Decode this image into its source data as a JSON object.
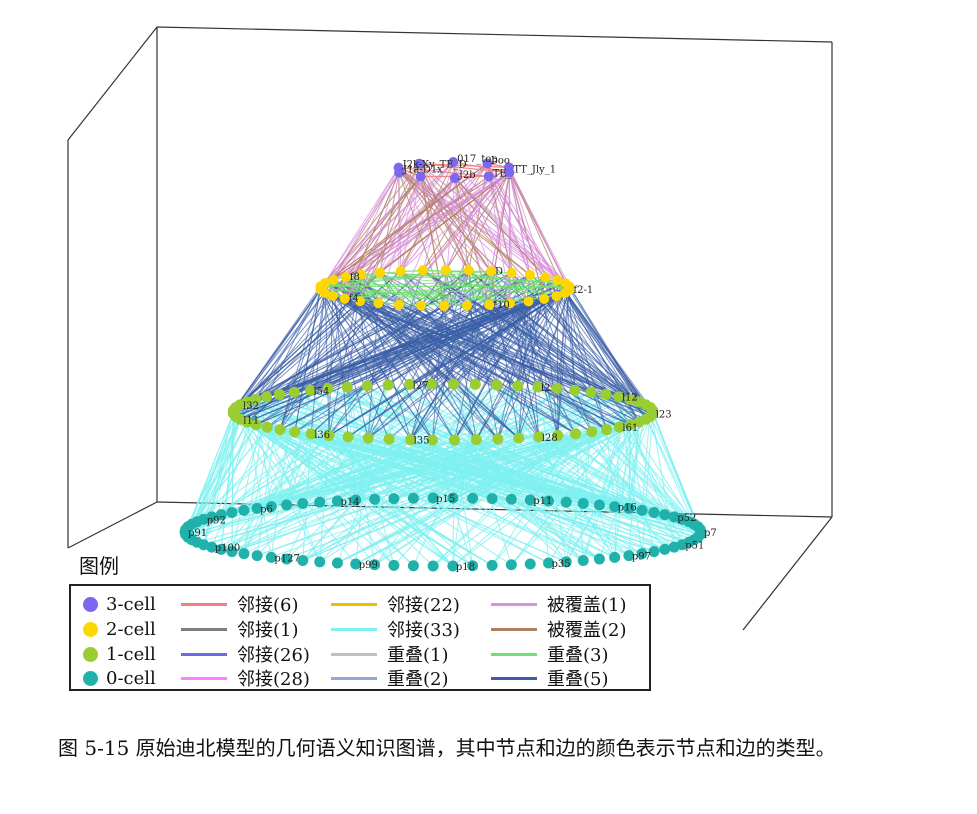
{
  "legend": {
    "title": "图例",
    "node_types": [
      {
        "label": "3-cell",
        "color": "#7b68ee"
      },
      {
        "label": "2-cell",
        "color": "#ffd700"
      },
      {
        "label": "1-cell",
        "color": "#9acd32"
      },
      {
        "label": "0-cell",
        "color": "#20b2aa"
      }
    ],
    "edge_types": [
      {
        "label": "邻接(6)",
        "color": "#f08080"
      },
      {
        "label": "邻接(1)",
        "color": "#808080"
      },
      {
        "label": "邻接(26)",
        "color": "#6a6ae8"
      },
      {
        "label": "邻接(28)",
        "color": "#ff80ff"
      },
      {
        "label": "邻接(22)",
        "color": "#f0c000"
      },
      {
        "label": "邻接(33)",
        "color": "#7ff0f0"
      },
      {
        "label": "重叠(1)",
        "color": "#c0c0c0"
      },
      {
        "label": "重叠(2)",
        "color": "#90a8d8"
      },
      {
        "label": "被覆盖(1)",
        "color": "#da90e0"
      },
      {
        "label": "被覆盖(2)",
        "color": "#b08060"
      },
      {
        "label": "重叠(3)",
        "color": "#70e070"
      },
      {
        "label": "重叠(5)",
        "color": "#3a5fa8"
      }
    ]
  },
  "caption": "图 5-15 原始迪北模型的几何语义知识图谱，其中节点和边的颜色表示节点和边的类型。",
  "graph_node_labels": {
    "cell3": [
      "TT_Jly_1",
      "TE_",
      "J2b",
      "J1a-D1x",
      "J2k-Xy_TE_D",
      "017_top",
      "boo"
    ],
    "cell2": [
      "f2-1",
      "f10",
      "f4",
      "f8",
      "D"
    ],
    "cell1": [
      "l23",
      "l61",
      "l28",
      "l35",
      "l36",
      "l11",
      "l32",
      "l54",
      "l27",
      "l2",
      "l12"
    ],
    "cell0": [
      "p7",
      "p51",
      "p97",
      "p35",
      "p18",
      "p99",
      "p127",
      "p100",
      "p91",
      "p92",
      "p6",
      "p14",
      "p15",
      "p11",
      "p16",
      "p52"
    ]
  }
}
